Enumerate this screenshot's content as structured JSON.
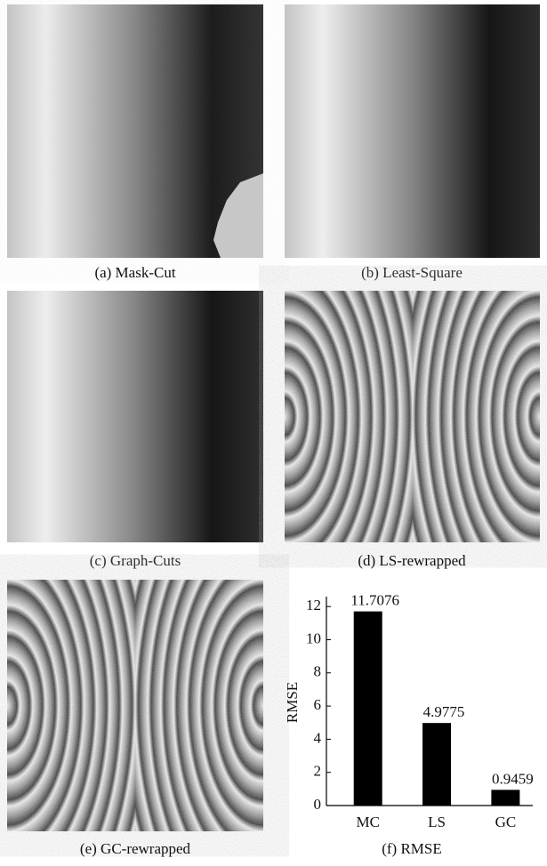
{
  "panels": [
    {
      "caption": "(a) Mask-Cut"
    },
    {
      "caption": "(b) Least-Square"
    },
    {
      "caption": "(c) Graph-Cuts"
    },
    {
      "caption": "(d) LS-rewrapped"
    },
    {
      "caption": "(e) GC-rewrapped"
    },
    {
      "caption": "(f) RMSE"
    }
  ],
  "chart_data": {
    "type": "bar",
    "y_label": "RMSE",
    "categories": [
      "MC",
      "LS",
      "GC"
    ],
    "values": [
      11.7076,
      4.9775,
      0.9459
    ],
    "color": "#000000",
    "ylim": [
      0,
      12.6
    ],
    "yticks": [
      0,
      2,
      4,
      6,
      8,
      10,
      12
    ],
    "grid": false
  }
}
